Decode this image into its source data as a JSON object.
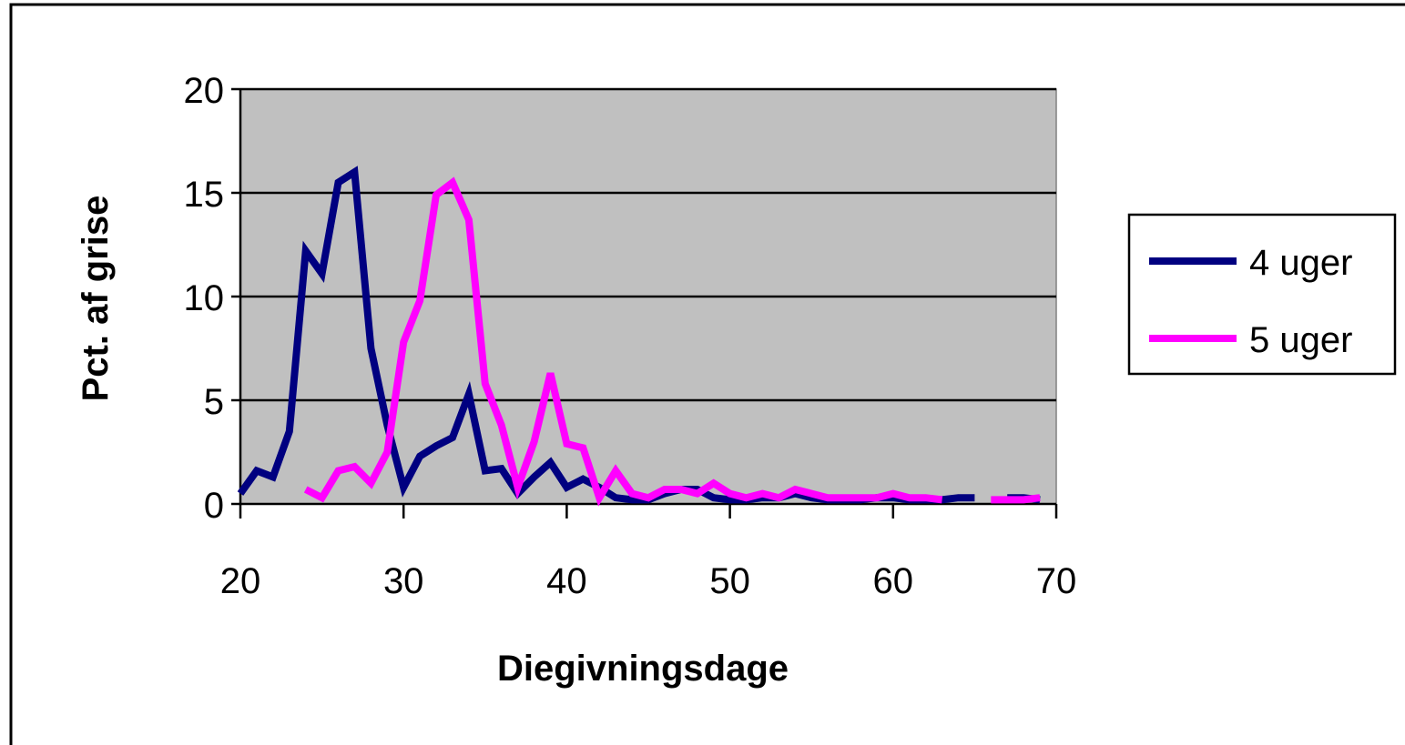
{
  "chart_data": {
    "type": "line",
    "title": "",
    "xlabel": "Diegivningsdage",
    "ylabel": "Pct. af grise",
    "xlim": [
      20,
      70
    ],
    "ylim": [
      0,
      20
    ],
    "xticks": [
      20,
      30,
      40,
      50,
      60,
      70
    ],
    "yticks": [
      0,
      5,
      10,
      15,
      20
    ],
    "grid": "horizontal",
    "legend_position": "right",
    "plot_background": "#c0c0c0",
    "series": [
      {
        "name": "4 uger",
        "color": "#000080",
        "segments": [
          [
            [
              20,
              0.5
            ],
            [
              21,
              1.6
            ],
            [
              22,
              1.3
            ],
            [
              23,
              3.5
            ],
            [
              24,
              12.2
            ],
            [
              25,
              11.1
            ],
            [
              26,
              15.5
            ],
            [
              27,
              16.0
            ],
            [
              28,
              7.5
            ],
            [
              29,
              3.8
            ],
            [
              30,
              0.8
            ],
            [
              31,
              2.3
            ],
            [
              32,
              2.8
            ],
            [
              33,
              3.2
            ],
            [
              34,
              5.3
            ],
            [
              35,
              1.6
            ],
            [
              36,
              1.7
            ],
            [
              37,
              0.5
            ],
            [
              38,
              1.3
            ],
            [
              39,
              2.0
            ],
            [
              40,
              0.8
            ],
            [
              41,
              1.2
            ],
            [
              42,
              0.8
            ],
            [
              43,
              0.3
            ],
            [
              44,
              0.2
            ],
            [
              45,
              0.2
            ],
            [
              46,
              0.5
            ],
            [
              47,
              0.7
            ],
            [
              48,
              0.7
            ],
            [
              49,
              0.3
            ],
            [
              50,
              0.2
            ],
            [
              51,
              0.2
            ],
            [
              52,
              0.3
            ],
            [
              53,
              0.3
            ],
            [
              54,
              0.5
            ],
            [
              55,
              0.3
            ],
            [
              56,
              0.2
            ],
            [
              57,
              0.2
            ],
            [
              58,
              0.2
            ],
            [
              59,
              0.3
            ],
            [
              60,
              0.3
            ],
            [
              61,
              0.2
            ],
            [
              62,
              0.2
            ],
            [
              63,
              0.2
            ],
            [
              64,
              0.3
            ],
            [
              65,
              0.3
            ]
          ],
          [
            [
              67,
              0.3
            ],
            [
              68,
              0.3
            ],
            [
              69,
              0.2
            ]
          ]
        ]
      },
      {
        "name": "5 uger",
        "color": "#ff00ff",
        "segments": [
          [
            [
              24,
              0.7
            ],
            [
              25,
              0.3
            ],
            [
              26,
              1.6
            ],
            [
              27,
              1.8
            ],
            [
              28,
              1.0
            ],
            [
              29,
              2.5
            ],
            [
              30,
              7.8
            ],
            [
              31,
              9.8
            ],
            [
              32,
              14.9
            ],
            [
              33,
              15.5
            ],
            [
              34,
              13.7
            ],
            [
              35,
              5.8
            ],
            [
              36,
              3.8
            ],
            [
              37,
              0.8
            ],
            [
              38,
              3.0
            ],
            [
              39,
              6.3
            ],
            [
              40,
              2.9
            ],
            [
              41,
              2.7
            ],
            [
              42,
              0.3
            ],
            [
              43,
              1.6
            ],
            [
              44,
              0.5
            ],
            [
              45,
              0.3
            ],
            [
              46,
              0.7
            ],
            [
              47,
              0.7
            ],
            [
              48,
              0.5
            ],
            [
              49,
              1.0
            ],
            [
              50,
              0.5
            ],
            [
              51,
              0.3
            ],
            [
              52,
              0.5
            ],
            [
              53,
              0.3
            ],
            [
              54,
              0.7
            ],
            [
              55,
              0.5
            ],
            [
              56,
              0.3
            ],
            [
              57,
              0.3
            ],
            [
              58,
              0.3
            ],
            [
              59,
              0.3
            ],
            [
              60,
              0.5
            ],
            [
              61,
              0.3
            ],
            [
              62,
              0.3
            ],
            [
              63,
              0.2
            ]
          ],
          [
            [
              66,
              0.2
            ],
            [
              67,
              0.2
            ],
            [
              68,
              0.2
            ],
            [
              69,
              0.3
            ]
          ]
        ]
      }
    ]
  }
}
